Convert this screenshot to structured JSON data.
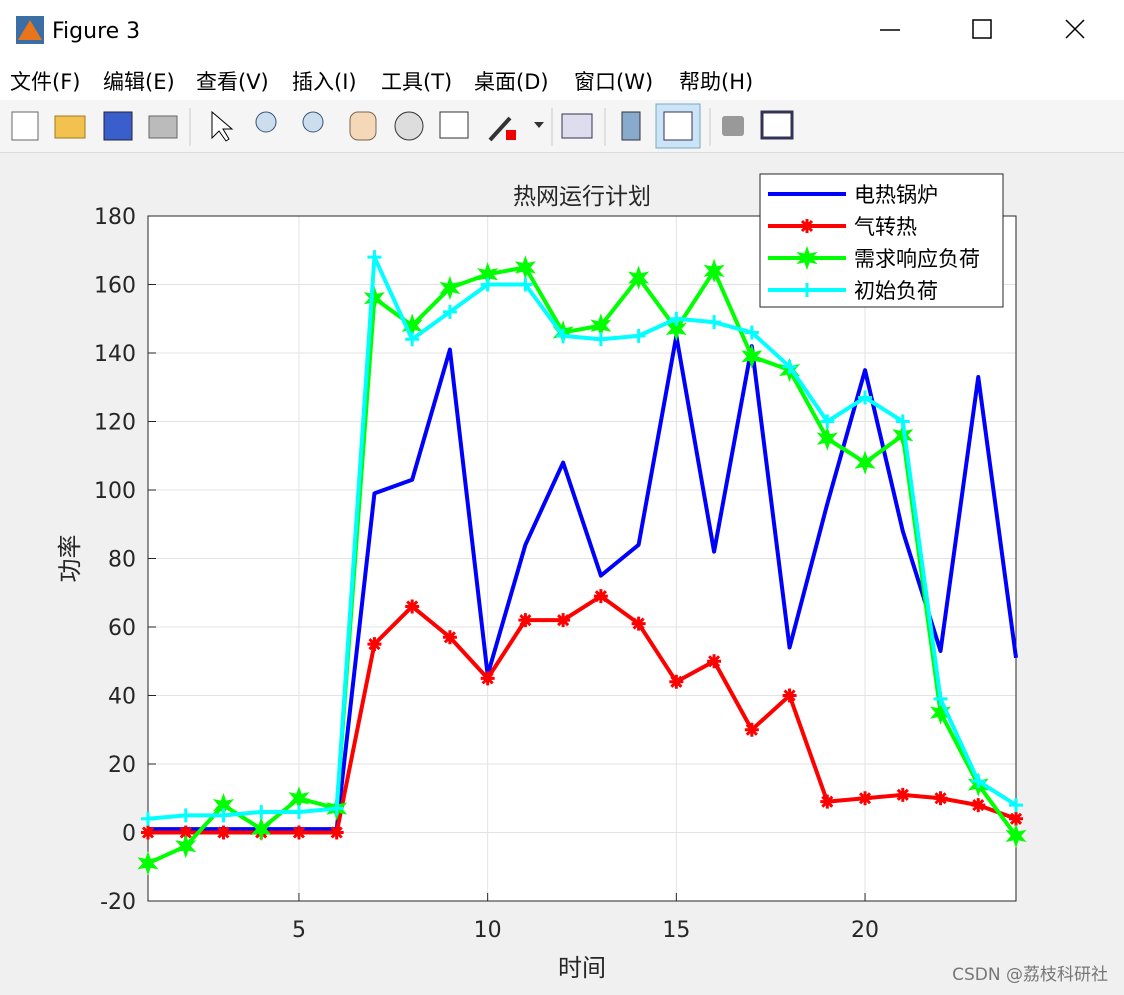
{
  "window_title": "Figure 3",
  "menu": [
    "文件(F)",
    "编辑(E)",
    "查看(V)",
    "插入(I)",
    "工具(T)",
    "桌面(D)",
    "窗口(W)",
    "帮助(H)"
  ],
  "watermark": "CSDN @荔枝科研社",
  "chart_data": {
    "type": "line",
    "title": "热网运行计划",
    "xlabel": "时间",
    "ylabel": "功率",
    "x": [
      1,
      2,
      3,
      4,
      5,
      6,
      7,
      8,
      9,
      10,
      11,
      12,
      13,
      14,
      15,
      16,
      17,
      18,
      19,
      20,
      21,
      22,
      23,
      24
    ],
    "xlim": [
      1,
      24
    ],
    "xticks": [
      5,
      10,
      15,
      20
    ],
    "ylim": [
      -20,
      180
    ],
    "yticks": [
      -20,
      0,
      20,
      40,
      60,
      80,
      100,
      120,
      140,
      160,
      180
    ],
    "grid": true,
    "legend": "northeast",
    "series": [
      {
        "name": "电热锅炉",
        "color": "#0000ff",
        "marker": "none",
        "values": [
          1,
          1,
          1,
          1,
          1,
          1,
          99,
          103,
          141,
          46,
          84,
          108,
          75,
          84,
          145,
          82,
          142,
          54,
          96,
          135,
          88,
          53,
          133,
          51
        ]
      },
      {
        "name": "气转热",
        "color": "#ff0000",
        "marker": "*",
        "values": [
          0,
          0,
          0,
          0,
          0,
          0,
          55,
          66,
          57,
          45,
          62,
          62,
          69,
          61,
          44,
          50,
          30,
          40,
          9,
          10,
          11,
          10,
          8,
          4
        ]
      },
      {
        "name": "需求响应负荷",
        "color": "#00ff00",
        "marker": "hexagram",
        "values": [
          -9,
          -4,
          8,
          1,
          10,
          7,
          156,
          148,
          159,
          163,
          165,
          146,
          148,
          162,
          147,
          164,
          139,
          135,
          115,
          108,
          116,
          35,
          14,
          -1
        ]
      },
      {
        "name": "初始负荷",
        "color": "#00ffff",
        "marker": "+",
        "values": [
          4,
          5,
          5,
          6,
          6,
          7,
          168,
          144,
          152,
          160,
          160,
          145,
          144,
          145,
          150,
          149,
          146,
          136,
          120,
          127,
          120,
          39,
          15,
          8
        ]
      }
    ]
  }
}
